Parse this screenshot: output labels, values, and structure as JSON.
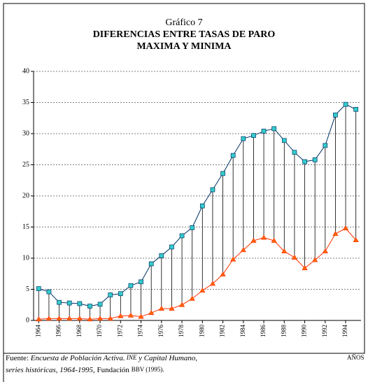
{
  "chart_data": {
    "type": "line",
    "title": "Gráfico 7",
    "subtitle": [
      "DIFERENCIAS ENTRE TASAS DE PARO",
      "MAXIMA Y MINIMA"
    ],
    "xlabel": "AÑOS",
    "source": [
      [
        "Fuente: ",
        "Encuesta de Población Activa.",
        " INE",
        " y Capital Humano,"
      ],
      [
        "series históricas, 1964-1995",
        ", Fundación ",
        "BBV (1995)."
      ]
    ],
    "x": [
      1964,
      1965,
      1966,
      1967,
      1968,
      1969,
      1970,
      1971,
      1972,
      1973,
      1974,
      1975,
      1976,
      1977,
      1978,
      1979,
      1980,
      1981,
      1982,
      1983,
      1984,
      1985,
      1986,
      1987,
      1988,
      1989,
      1990,
      1991,
      1992,
      1993,
      1994,
      1995
    ],
    "series": [
      {
        "color": "#003366",
        "marker": "square",
        "marker_color": "#33cccc",
        "values": [
          5.1,
          4.6,
          2.9,
          2.8,
          2.7,
          2.3,
          2.6,
          4.1,
          4.3,
          5.6,
          6.2,
          9.1,
          10.4,
          11.8,
          13.6,
          14.9,
          18.4,
          21.0,
          23.6,
          26.5,
          29.2,
          29.7,
          30.4,
          30.8,
          28.9,
          27.0,
          25.5,
          25.8,
          28.1,
          33.0,
          34.7,
          33.9
        ]
      },
      {
        "color": "#ff3300",
        "marker": "triangle",
        "marker_color": "#ff6600",
        "values": [
          0.2,
          0.3,
          0.3,
          0.3,
          0.3,
          0.2,
          0.3,
          0.3,
          0.7,
          0.8,
          0.6,
          1.2,
          1.9,
          1.9,
          2.5,
          3.5,
          4.8,
          5.9,
          7.4,
          9.8,
          11.3,
          12.8,
          13.3,
          12.8,
          11.1,
          10.1,
          8.4,
          9.7,
          11.1,
          13.9,
          14.8,
          12.9
        ]
      }
    ],
    "high_low_lines": true,
    "xlim": [
      1963.5,
      1995.5
    ],
    "xticks": [
      1964,
      1966,
      1968,
      1970,
      1972,
      1974,
      1976,
      1978,
      1980,
      1982,
      1984,
      1986,
      1988,
      1990,
      1992,
      1994
    ],
    "ylim": [
      0,
      40
    ],
    "yticks": [
      0,
      5,
      10,
      15,
      20,
      25,
      30,
      35,
      40
    ],
    "grid": true
  }
}
